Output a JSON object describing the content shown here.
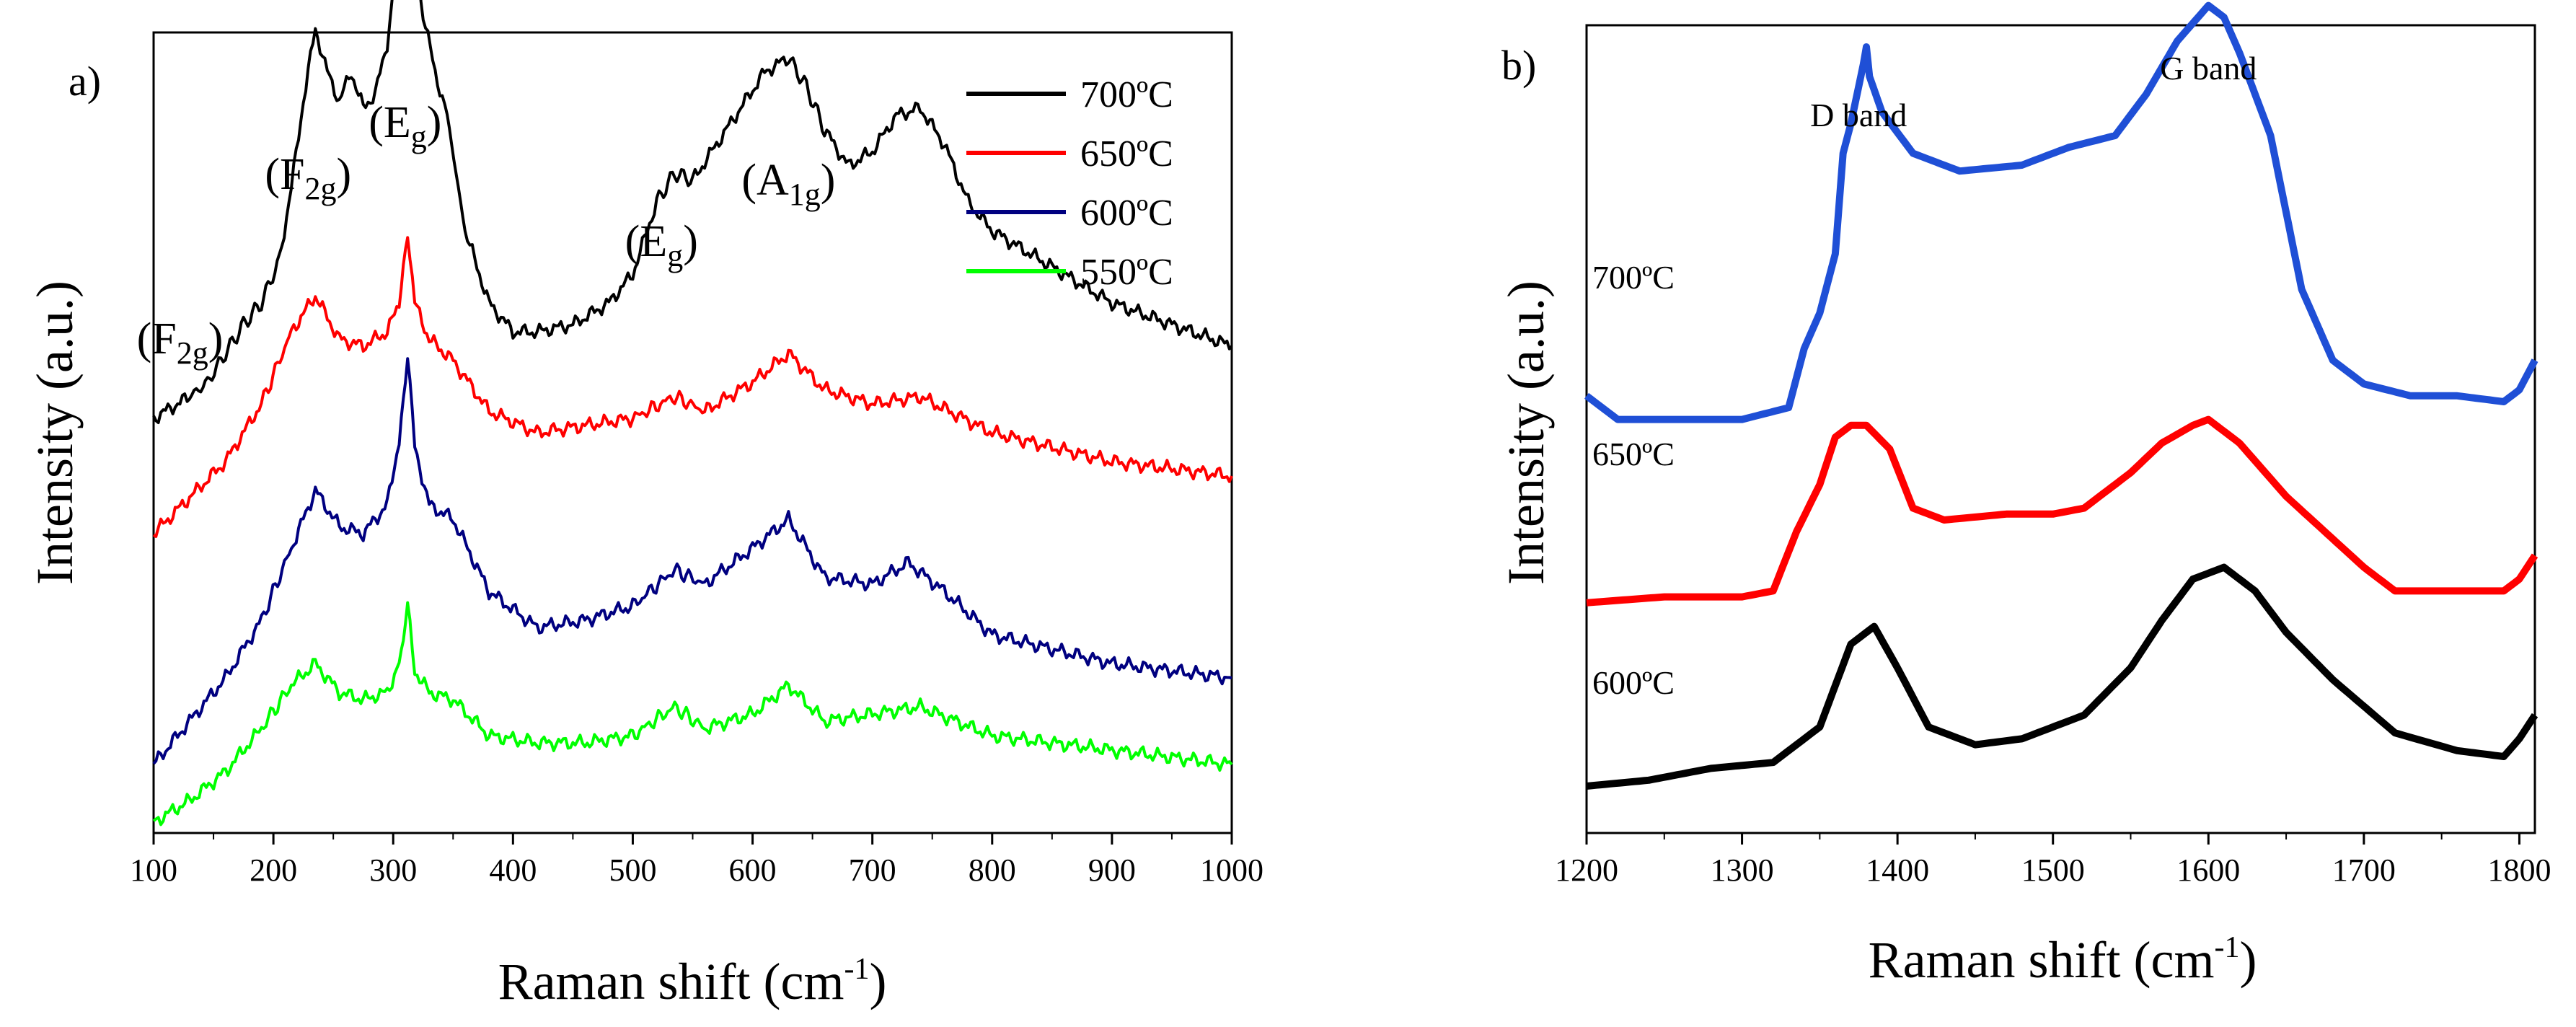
{
  "chart_data": [
    {
      "panel": "a)",
      "type": "line",
      "xlabel": "Raman shift (cm",
      "xlabel_sup": "-1",
      "xlabel_close": ")",
      "ylabel": "Intensity (a.u.)",
      "xlim": [
        100,
        1000
      ],
      "xticks": [
        "100",
        "200",
        "300",
        "400",
        "500",
        "600",
        "700",
        "800",
        "900",
        "1000"
      ],
      "yticks_visible": false,
      "legend_position": "top-right",
      "peak_labels": [
        {
          "base": "(F",
          "sub": "2g",
          "close": ")",
          "x": 128
        },
        {
          "base": "(F",
          "sub": "2g",
          "close": ")",
          "x": 235
        },
        {
          "base": "(E",
          "sub": "g",
          "close": ")",
          "x": 310
        },
        {
          "base": "(E",
          "sub": "g",
          "close": ")",
          "x": 530
        },
        {
          "base": "(A",
          "sub": "1g",
          "close": ")",
          "x": 630
        }
      ],
      "series": [
        {
          "name": "700ºC",
          "color": "#000000",
          "offset": 0.56,
          "x": [
            100,
            130,
            145,
            160,
            175,
            190,
            205,
            215,
            225,
            235,
            245,
            255,
            265,
            275,
            285,
            295,
            305,
            312,
            318,
            325,
            335,
            345,
            360,
            380,
            400,
            420,
            450,
            480,
            500,
            520,
            535,
            550,
            570,
            590,
            610,
            630,
            645,
            660,
            680,
            700,
            720,
            740,
            760,
            780,
            800,
            850,
            900,
            950,
            1000
          ],
          "y": [
            0,
            0.03,
            0.05,
            0.09,
            0.13,
            0.16,
            0.22,
            0.32,
            0.44,
            0.54,
            0.48,
            0.44,
            0.48,
            0.43,
            0.45,
            0.52,
            0.66,
            0.78,
            0.65,
            0.56,
            0.48,
            0.42,
            0.26,
            0.16,
            0.12,
            0.12,
            0.13,
            0.16,
            0.2,
            0.3,
            0.34,
            0.33,
            0.38,
            0.43,
            0.48,
            0.5,
            0.46,
            0.4,
            0.35,
            0.37,
            0.42,
            0.43,
            0.38,
            0.3,
            0.26,
            0.21,
            0.16,
            0.13,
            0.1
          ]
        },
        {
          "name": "650ºC",
          "color": "#ff0000",
          "offset": 0.4,
          "x": [
            100,
            130,
            160,
            190,
            215,
            235,
            255,
            275,
            295,
            305,
            312,
            318,
            330,
            350,
            380,
            420,
            460,
            500,
            535,
            560,
            600,
            630,
            660,
            700,
            740,
            800,
            900,
            1000
          ],
          "y": [
            0,
            0.05,
            0.1,
            0.18,
            0.28,
            0.33,
            0.27,
            0.26,
            0.28,
            0.32,
            0.42,
            0.32,
            0.27,
            0.24,
            0.17,
            0.14,
            0.15,
            0.16,
            0.19,
            0.17,
            0.21,
            0.25,
            0.2,
            0.18,
            0.19,
            0.14,
            0.1,
            0.08
          ]
        },
        {
          "name": "600ºC",
          "color": "#000080",
          "offset": 0.08,
          "x": [
            100,
            130,
            160,
            190,
            215,
            235,
            255,
            275,
            295,
            305,
            312,
            318,
            330,
            350,
            380,
            420,
            460,
            500,
            535,
            560,
            600,
            630,
            660,
            700,
            730,
            760,
            800,
            900,
            1000
          ],
          "y": [
            0,
            0.06,
            0.12,
            0.2,
            0.3,
            0.38,
            0.33,
            0.32,
            0.36,
            0.45,
            0.57,
            0.44,
            0.36,
            0.34,
            0.24,
            0.19,
            0.2,
            0.22,
            0.27,
            0.25,
            0.3,
            0.34,
            0.26,
            0.25,
            0.28,
            0.24,
            0.18,
            0.14,
            0.12
          ]
        },
        {
          "name": "550ºC",
          "color": "#00ff00",
          "offset": 0.0,
          "x": [
            100,
            130,
            160,
            190,
            215,
            235,
            255,
            275,
            295,
            305,
            312,
            318,
            330,
            350,
            380,
            420,
            460,
            500,
            535,
            560,
            600,
            630,
            660,
            700,
            740,
            800,
            900,
            1000
          ],
          "y": [
            0,
            0.03,
            0.07,
            0.13,
            0.19,
            0.22,
            0.18,
            0.17,
            0.18,
            0.22,
            0.3,
            0.21,
            0.18,
            0.17,
            0.12,
            0.11,
            0.11,
            0.12,
            0.16,
            0.13,
            0.15,
            0.19,
            0.14,
            0.15,
            0.16,
            0.12,
            0.1,
            0.08
          ]
        }
      ]
    },
    {
      "panel": "b)",
      "type": "line",
      "xlabel": "Raman shift (cm",
      "xlabel_sup": "-1",
      "xlabel_close": ")",
      "ylabel": "Intensity (a.u.)",
      "xlim": [
        1200,
        1810
      ],
      "xticks": [
        "1200",
        "1300",
        "1400",
        "1500",
        "1600",
        "1700",
        "1800"
      ],
      "yticks_visible": false,
      "band_labels": [
        {
          "text": "D band",
          "x": 1375
        },
        {
          "text": "G band",
          "x": 1600
        }
      ],
      "series": [
        {
          "name": "700ºC",
          "color": "#1f4fd6",
          "offset": 0.62,
          "x": [
            1200,
            1220,
            1260,
            1300,
            1330,
            1340,
            1350,
            1360,
            1365,
            1370,
            1378,
            1380,
            1382,
            1390,
            1410,
            1440,
            1480,
            1510,
            1540,
            1560,
            1580,
            1600,
            1610,
            1620,
            1640,
            1660,
            1680,
            1700,
            1730,
            1760,
            1790,
            1800,
            1810
          ],
          "y": [
            0.04,
            0.0,
            0.0,
            0.0,
            0.02,
            0.12,
            0.18,
            0.28,
            0.45,
            0.5,
            0.6,
            0.63,
            0.58,
            0.52,
            0.45,
            0.42,
            0.43,
            0.46,
            0.48,
            0.55,
            0.64,
            0.7,
            0.68,
            0.62,
            0.48,
            0.22,
            0.1,
            0.06,
            0.04,
            0.04,
            0.03,
            0.05,
            0.1
          ]
        },
        {
          "name": "650ºC",
          "color": "#ff0000",
          "offset": 0.31,
          "x": [
            1200,
            1250,
            1300,
            1320,
            1335,
            1350,
            1360,
            1370,
            1380,
            1395,
            1410,
            1430,
            1470,
            1500,
            1520,
            1550,
            1570,
            1590,
            1600,
            1620,
            1650,
            1700,
            1720,
            1760,
            1790,
            1800,
            1810
          ],
          "y": [
            0.0,
            0.01,
            0.01,
            0.02,
            0.12,
            0.2,
            0.28,
            0.3,
            0.3,
            0.26,
            0.16,
            0.14,
            0.15,
            0.15,
            0.16,
            0.22,
            0.27,
            0.3,
            0.31,
            0.27,
            0.18,
            0.06,
            0.02,
            0.02,
            0.02,
            0.04,
            0.08
          ]
        },
        {
          "name": "600ºC",
          "color": "#000000",
          "offset": 0.0,
          "x": [
            1200,
            1240,
            1280,
            1320,
            1350,
            1370,
            1385,
            1400,
            1420,
            1450,
            1480,
            1520,
            1550,
            1570,
            1590,
            1610,
            1630,
            1650,
            1680,
            1720,
            1760,
            1790,
            1800,
            1810
          ],
          "y": [
            0.0,
            0.01,
            0.03,
            0.04,
            0.1,
            0.24,
            0.27,
            0.2,
            0.1,
            0.07,
            0.08,
            0.12,
            0.2,
            0.28,
            0.35,
            0.37,
            0.33,
            0.26,
            0.18,
            0.09,
            0.06,
            0.05,
            0.08,
            0.12
          ]
        }
      ]
    }
  ]
}
